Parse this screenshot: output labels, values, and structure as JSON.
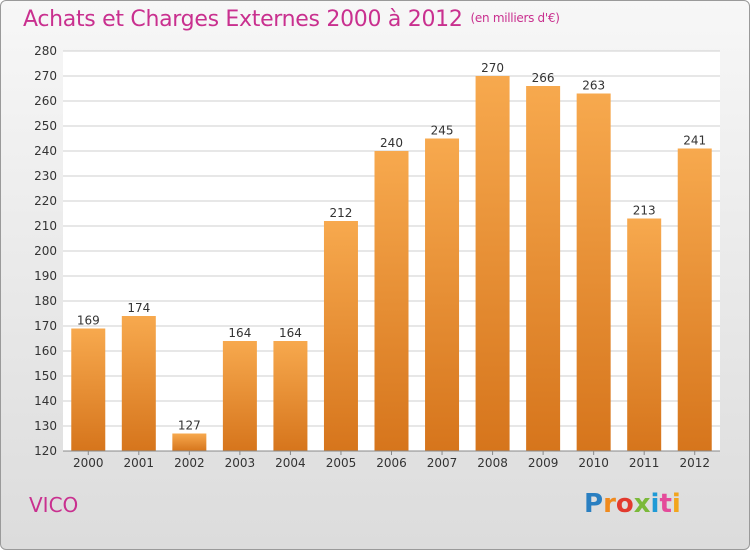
{
  "header": {
    "title": "Achats et Charges Externes 2000 à 2012",
    "unit": "(en milliers d'€)"
  },
  "footer": {
    "place": "VICO",
    "logo_letters": [
      "P",
      "r",
      "o",
      "x",
      "i",
      "t",
      "i"
    ],
    "logo_colors": [
      "#2a7fc1",
      "#f08a1d",
      "#e23a2e",
      "#7bb93a",
      "#1f9ad6",
      "#e44b9a",
      "#f2a51d"
    ]
  },
  "colors": {
    "bar_top": "#f7a94e",
    "bar_bottom": "#d6751c",
    "grid": "#cfcfcf",
    "axis_text": "#333333"
  },
  "chart_data": {
    "type": "bar",
    "title": "Achats et Charges Externes 2000 à 2012",
    "subtitle": "(en milliers d'€)",
    "xlabel": "",
    "ylabel": "",
    "categories": [
      "2000",
      "2001",
      "2002",
      "2003",
      "2004",
      "2005",
      "2006",
      "2007",
      "2008",
      "2009",
      "2010",
      "2011",
      "2012"
    ],
    "values": [
      169,
      174,
      127,
      164,
      164,
      212,
      240,
      245,
      270,
      266,
      263,
      213,
      241
    ],
    "ylim": [
      120,
      280
    ],
    "yticks": [
      120,
      130,
      140,
      150,
      160,
      170,
      180,
      190,
      200,
      210,
      220,
      230,
      240,
      250,
      260,
      270,
      280
    ],
    "grid": true,
    "legend": "none"
  }
}
